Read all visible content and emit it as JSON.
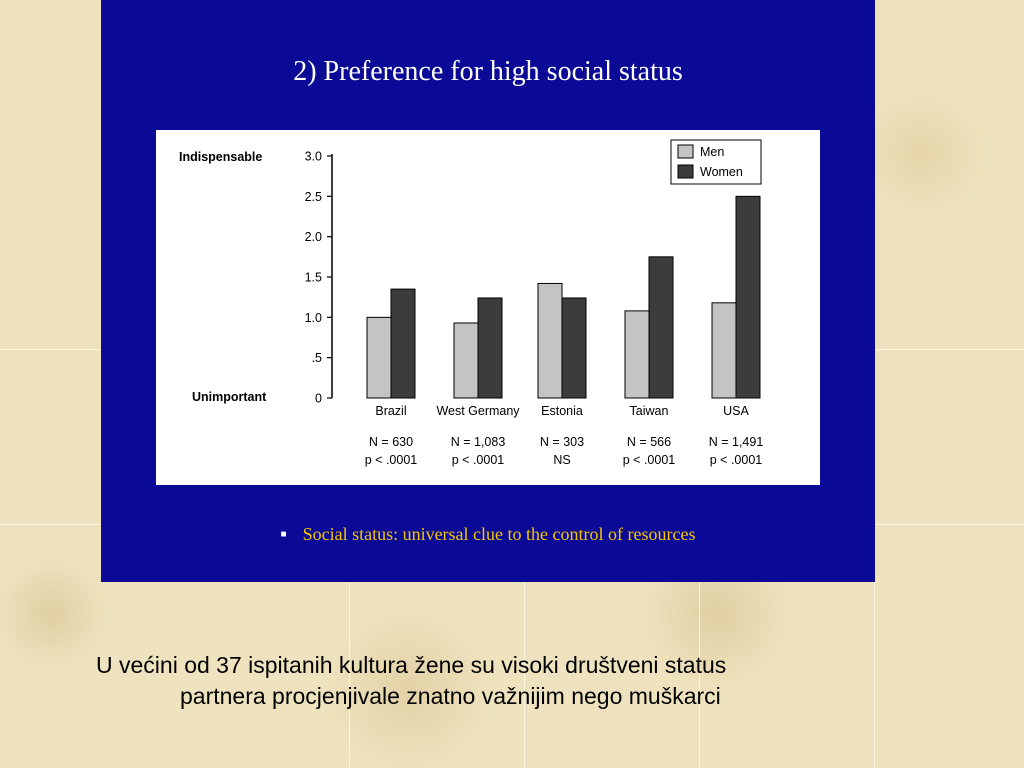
{
  "slide": {
    "title": "2)  Preference for high social status",
    "bullet": "Social  status: universal clue to the control of resources",
    "footnote_line1": "U većini od 37 ispitanih kultura žene su visoki društveni status",
    "footnote_line2": "partnera procjenjivale znatno važnijim nego muškarci"
  },
  "colors": {
    "panel": "#0a0a96",
    "men": "#c4c4c4",
    "women": "#3c3c3c",
    "bullet_text": "#f5c400"
  },
  "chart_data": {
    "type": "bar",
    "categories": [
      "Brazil",
      "West Germany",
      "Estonia",
      "Taiwan",
      "USA"
    ],
    "series": [
      {
        "name": "Men",
        "values": [
          1.0,
          0.93,
          1.42,
          1.08,
          1.18
        ]
      },
      {
        "name": "Women",
        "values": [
          1.35,
          1.24,
          1.24,
          1.75,
          2.5
        ]
      }
    ],
    "yticks": [
      {
        "value": 0,
        "label": "0"
      },
      {
        "value": 0.5,
        "label": ".5"
      },
      {
        "value": 1.0,
        "label": "1.0"
      },
      {
        "value": 1.5,
        "label": "1.5"
      },
      {
        "value": 2.0,
        "label": "2.0"
      },
      {
        "value": 2.5,
        "label": "2.5"
      },
      {
        "value": 3.0,
        "label": "3.0"
      }
    ],
    "ylim": [
      0,
      3.0
    ],
    "y_top_label": "Indispensable",
    "y_bottom_label": "Unimportant",
    "sample_sizes": [
      "N = 630",
      "N = 1,083",
      "N = 303",
      "N = 566",
      "N = 1,491"
    ],
    "significance": [
      "p < .0001",
      "p < .0001",
      "NS",
      "p < .0001",
      "p < .0001"
    ],
    "legend_position": "top-right",
    "grid": false
  }
}
